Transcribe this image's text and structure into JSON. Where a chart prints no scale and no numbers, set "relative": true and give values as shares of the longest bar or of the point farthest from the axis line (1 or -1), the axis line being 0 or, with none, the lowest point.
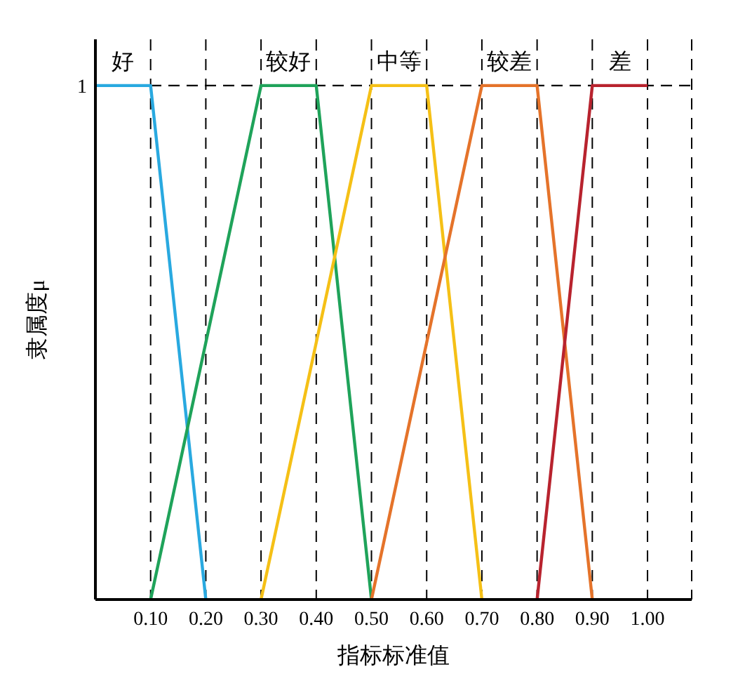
{
  "chart_data": {
    "type": "line",
    "xlabel": "指标标准值",
    "ylabel": "隶属度μ",
    "relative": true,
    "xlim": [
      0,
      1.08
    ],
    "xticks": [
      {
        "value": 0.1,
        "label": "0.10"
      },
      {
        "value": 0.2,
        "label": "0.20"
      },
      {
        "value": 0.3,
        "label": "0.30"
      },
      {
        "value": 0.4,
        "label": "0.40"
      },
      {
        "value": 0.5,
        "label": "0.50"
      },
      {
        "value": 0.6,
        "label": "0.60"
      },
      {
        "value": 0.7,
        "label": "0.70"
      },
      {
        "value": 0.8,
        "label": "0.80"
      },
      {
        "value": 0.9,
        "label": "0.90"
      },
      {
        "value": 1.0,
        "label": "1.00"
      }
    ],
    "grid": "x",
    "legend": false,
    "marker": "none",
    "line_style": "solid",
    "ref_lines": [
      {
        "axis": "y",
        "value": 1,
        "label": "1",
        "color": "#000000",
        "line_style": "dashed"
      }
    ],
    "series": [
      {
        "name": "好",
        "color": "#29a9e0",
        "x": [
          0,
          0.1,
          0.2
        ],
        "values": [
          1,
          1,
          0
        ]
      },
      {
        "name": "较好",
        "color": "#1fa35a",
        "x": [
          0.1,
          0.3,
          0.4,
          0.5
        ],
        "values": [
          0,
          1,
          1,
          0
        ]
      },
      {
        "name": "中等",
        "color": "#f5c016",
        "x": [
          0.3,
          0.5,
          0.6,
          0.7
        ],
        "values": [
          0,
          1,
          1,
          0
        ]
      },
      {
        "name": "较差",
        "color": "#e5732a",
        "x": [
          0.5,
          0.7,
          0.8,
          0.9
        ],
        "values": [
          0,
          1,
          1,
          0
        ]
      },
      {
        "name": "差",
        "color": "#b8232e",
        "x": [
          0.8,
          0.9,
          1.0
        ],
        "values": [
          0,
          1,
          1
        ]
      }
    ]
  }
}
